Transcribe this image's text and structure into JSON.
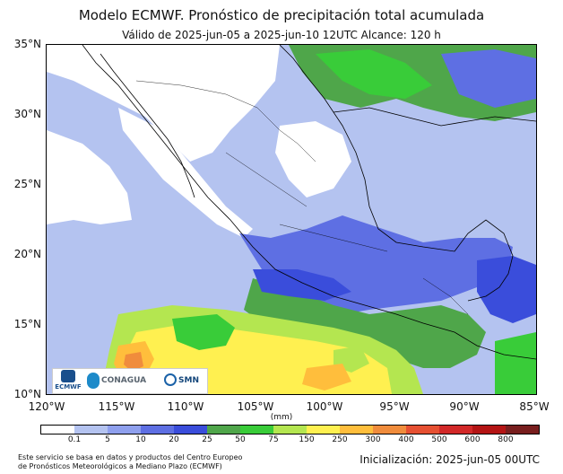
{
  "title": "Modelo ECMWF. Pronóstico de precipitación total acumulada",
  "subtitle": "Válido de 2025-jun-05 a 2025-jun-10 12UTC   Alcance: 120 h",
  "lat_labels": [
    "35°N",
    "30°N",
    "25°N",
    "20°N",
    "15°N",
    "10°N"
  ],
  "lon_labels": [
    "120°W",
    "115°W",
    "110°W",
    "105°W",
    "100°W",
    "95°W",
    "90°W",
    "85°W"
  ],
  "unit": "(mm)",
  "colorbar": {
    "labels": [
      "0.1",
      "5",
      "10",
      "20",
      "25",
      "50",
      "75",
      "150",
      "250",
      "300",
      "400",
      "500",
      "600",
      "800"
    ],
    "colors": [
      "#ffffff",
      "#b4c3f0",
      "#8fa0ee",
      "#5e6fe3",
      "#3a4ddb",
      "#4fa64a",
      "#39cc39",
      "#b4e650",
      "#fff050",
      "#ffbe3c",
      "#f08c3c",
      "#e65032",
      "#d22828",
      "#b41414",
      "#781e1e"
    ]
  },
  "logos": {
    "ecmwf": "ECMWF",
    "conagua": "CONAGUA",
    "smn": "SMN"
  },
  "footer": {
    "left_line1": "Este servicio se basa en datos y productos del Centro Europeo",
    "left_line2": "de Pronósticos Meteorológicos a Mediano Plazo (ECMWF)",
    "right": "Inicialización: 2025-jun-05 00UTC"
  }
}
